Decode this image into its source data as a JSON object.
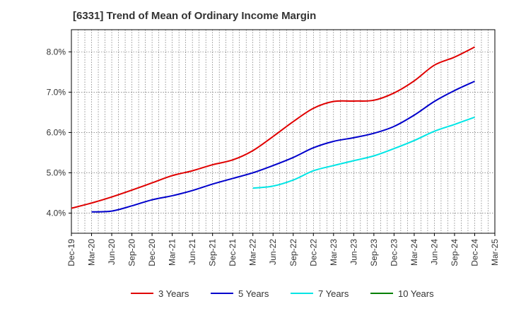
{
  "chart_data": {
    "type": "line",
    "title": "[6331]  Trend of Mean of Ordinary Income Margin",
    "xlabel": "",
    "ylabel": "",
    "x_ticks": [
      "Dec-19",
      "Mar-20",
      "Jun-20",
      "Sep-20",
      "Dec-20",
      "Mar-21",
      "Jun-21",
      "Sep-21",
      "Dec-21",
      "Mar-22",
      "Jun-22",
      "Sep-22",
      "Dec-22",
      "Mar-23",
      "Jun-23",
      "Sep-23",
      "Dec-23",
      "Mar-24",
      "Jun-24",
      "Sep-24",
      "Dec-24",
      "Mar-25"
    ],
    "y_ticks": [
      "4.0%",
      "5.0%",
      "6.0%",
      "7.0%",
      "8.0%"
    ],
    "ylim": [
      3.5,
      8.55
    ],
    "grid": true,
    "legend_position": "bottom",
    "series": [
      {
        "name": "3 Years",
        "color": "#e00000",
        "x": [
          "Dec-19",
          "Mar-20",
          "Jun-20",
          "Sep-20",
          "Dec-20",
          "Mar-21",
          "Jun-21",
          "Sep-21",
          "Dec-21",
          "Mar-22",
          "Jun-22",
          "Sep-22",
          "Dec-22",
          "Mar-23",
          "Jun-23",
          "Sep-23",
          "Dec-23",
          "Mar-24",
          "Jun-24",
          "Sep-24",
          "Dec-24"
        ],
        "values": [
          4.12,
          4.25,
          4.4,
          4.57,
          4.75,
          4.93,
          5.05,
          5.2,
          5.32,
          5.55,
          5.9,
          6.27,
          6.6,
          6.77,
          6.78,
          6.8,
          6.98,
          7.28,
          7.67,
          7.87,
          8.12
        ]
      },
      {
        "name": "5 Years",
        "color": "#0000cc",
        "x": [
          "Mar-20",
          "Jun-20",
          "Sep-20",
          "Dec-20",
          "Mar-21",
          "Jun-21",
          "Sep-21",
          "Dec-21",
          "Mar-22",
          "Jun-22",
          "Sep-22",
          "Dec-22",
          "Mar-23",
          "Jun-23",
          "Sep-23",
          "Dec-23",
          "Mar-24",
          "Jun-24",
          "Sep-24",
          "Dec-24"
        ],
        "values": [
          4.03,
          4.05,
          4.18,
          4.33,
          4.43,
          4.56,
          4.72,
          4.86,
          5.0,
          5.18,
          5.38,
          5.62,
          5.78,
          5.87,
          5.98,
          6.15,
          6.43,
          6.77,
          7.04,
          7.27
        ]
      },
      {
        "name": "7 Years",
        "color": "#00e5e5",
        "x": [
          "Mar-22",
          "Jun-22",
          "Sep-22",
          "Dec-22",
          "Mar-23",
          "Jun-23",
          "Sep-23",
          "Dec-23",
          "Mar-24",
          "Jun-24",
          "Sep-24",
          "Dec-24"
        ],
        "values": [
          4.62,
          4.67,
          4.82,
          5.05,
          5.18,
          5.3,
          5.42,
          5.6,
          5.8,
          6.03,
          6.2,
          6.38
        ]
      },
      {
        "name": "10 Years",
        "color": "#008000",
        "x": [],
        "values": []
      }
    ]
  }
}
